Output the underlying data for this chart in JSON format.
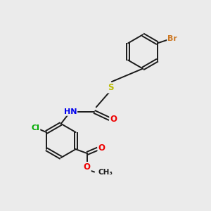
{
  "bg_color": "#ebebeb",
  "bond_color": "#1a1a1a",
  "colors": {
    "Br": "#cc7722",
    "S": "#bbbb00",
    "N": "#0000ee",
    "O": "#ee0000",
    "Cl": "#00aa00",
    "C": "#1a1a1a"
  },
  "figsize": [
    3.0,
    3.0
  ],
  "dpi": 100
}
